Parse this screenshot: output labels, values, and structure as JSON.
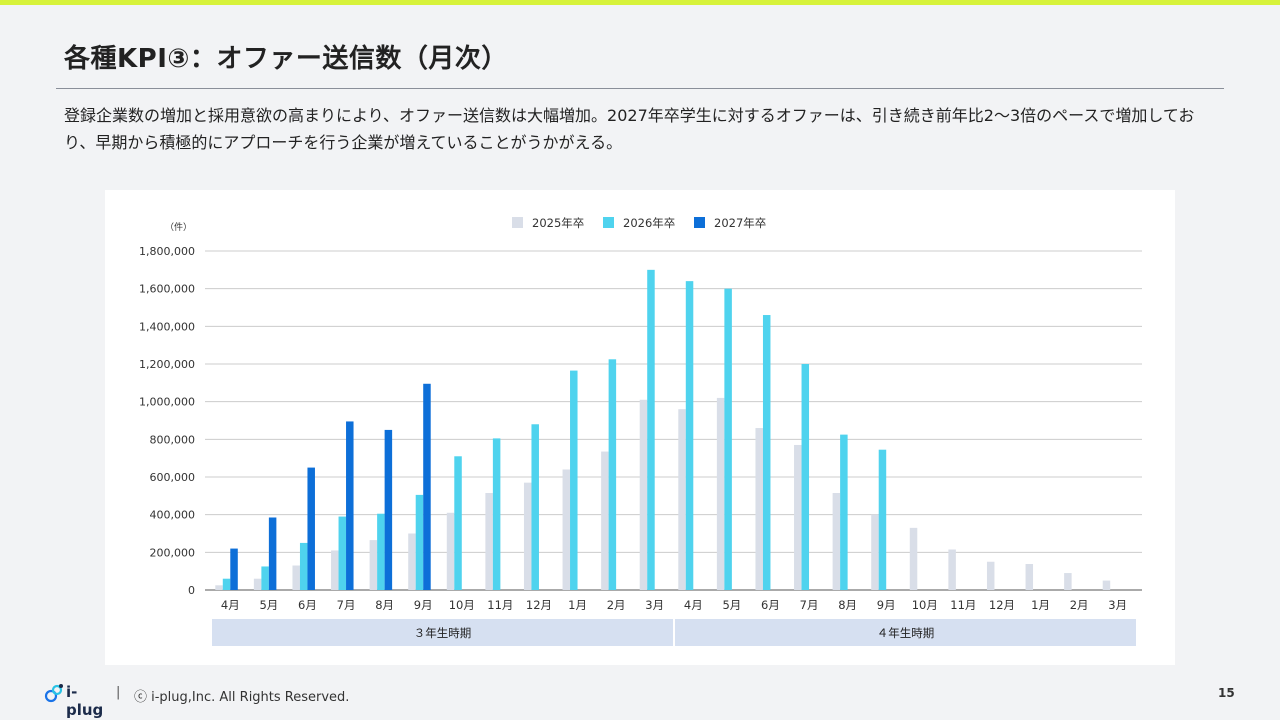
{
  "slide": {
    "title": "各種KPI③：オファー送信数（月次）",
    "description": "登録企業数の増加と採用意欲の高まりにより、オファー送信数は大幅増加。2027年卒学生に対するオファーは、引き続き前年比2〜3倍のペースで増加しており、早期から積極的にアプローチを行う企業が増えていることがうかがえる。",
    "page_number": "15"
  },
  "footer": {
    "logo_text": "i-plug",
    "separator": "|",
    "copyright": "ⓒ i-plug,Inc. All Rights Reserved."
  },
  "colors": {
    "accent_bar": "#d7f23a",
    "series_2025": "#d9dee8",
    "series_2026": "#4fd3ee",
    "series_2027": "#0d6fd8",
    "period_band": "#d6e0f1"
  },
  "chart_data": {
    "type": "bar",
    "unit_label": "（件）",
    "title": "",
    "xlabel": "",
    "ylabel": "",
    "ylim": [
      0,
      1800000
    ],
    "yticks": [
      "0",
      "200,000",
      "400,000",
      "600,000",
      "800,000",
      "1,000,000",
      "1,200,000",
      "1,400,000",
      "1,600,000",
      "1,800,000"
    ],
    "ytick_values": [
      0,
      200000,
      400000,
      600000,
      800000,
      1000000,
      1200000,
      1400000,
      1600000,
      1800000
    ],
    "grid": true,
    "legend_position": "top-center",
    "categories": [
      "4月",
      "5月",
      "6月",
      "7月",
      "8月",
      "9月",
      "10月",
      "11月",
      "12月",
      "1月",
      "2月",
      "3月",
      "4月",
      "5月",
      "6月",
      "7月",
      "8月",
      "9月",
      "10月",
      "11月",
      "12月",
      "1月",
      "2月",
      "3月"
    ],
    "series": [
      {
        "name": "2025年卒",
        "color": "#d9dee8",
        "values": [
          25000,
          60000,
          130000,
          210000,
          265000,
          300000,
          410000,
          515000,
          570000,
          640000,
          735000,
          1010000,
          960000,
          1020000,
          860000,
          770000,
          515000,
          400000,
          330000,
          215000,
          150000,
          138000,
          90000,
          50000
        ]
      },
      {
        "name": "2026年卒",
        "color": "#4fd3ee",
        "values": [
          60000,
          125000,
          250000,
          390000,
          405000,
          505000,
          710000,
          805000,
          880000,
          1165000,
          1225000,
          1700000,
          1640000,
          1600000,
          1460000,
          1200000,
          825000,
          745000,
          null,
          null,
          null,
          null,
          null,
          null
        ]
      },
      {
        "name": "2027年卒",
        "color": "#0d6fd8",
        "values": [
          220000,
          385000,
          650000,
          895000,
          850000,
          1095000,
          null,
          null,
          null,
          null,
          null,
          null,
          null,
          null,
          null,
          null,
          null,
          null,
          null,
          null,
          null,
          null,
          null,
          null
        ]
      }
    ],
    "periods": [
      {
        "label": "３年生時期",
        "start_index": 0,
        "end_index": 11
      },
      {
        "label": "４年生時期",
        "start_index": 12,
        "end_index": 23
      }
    ]
  }
}
